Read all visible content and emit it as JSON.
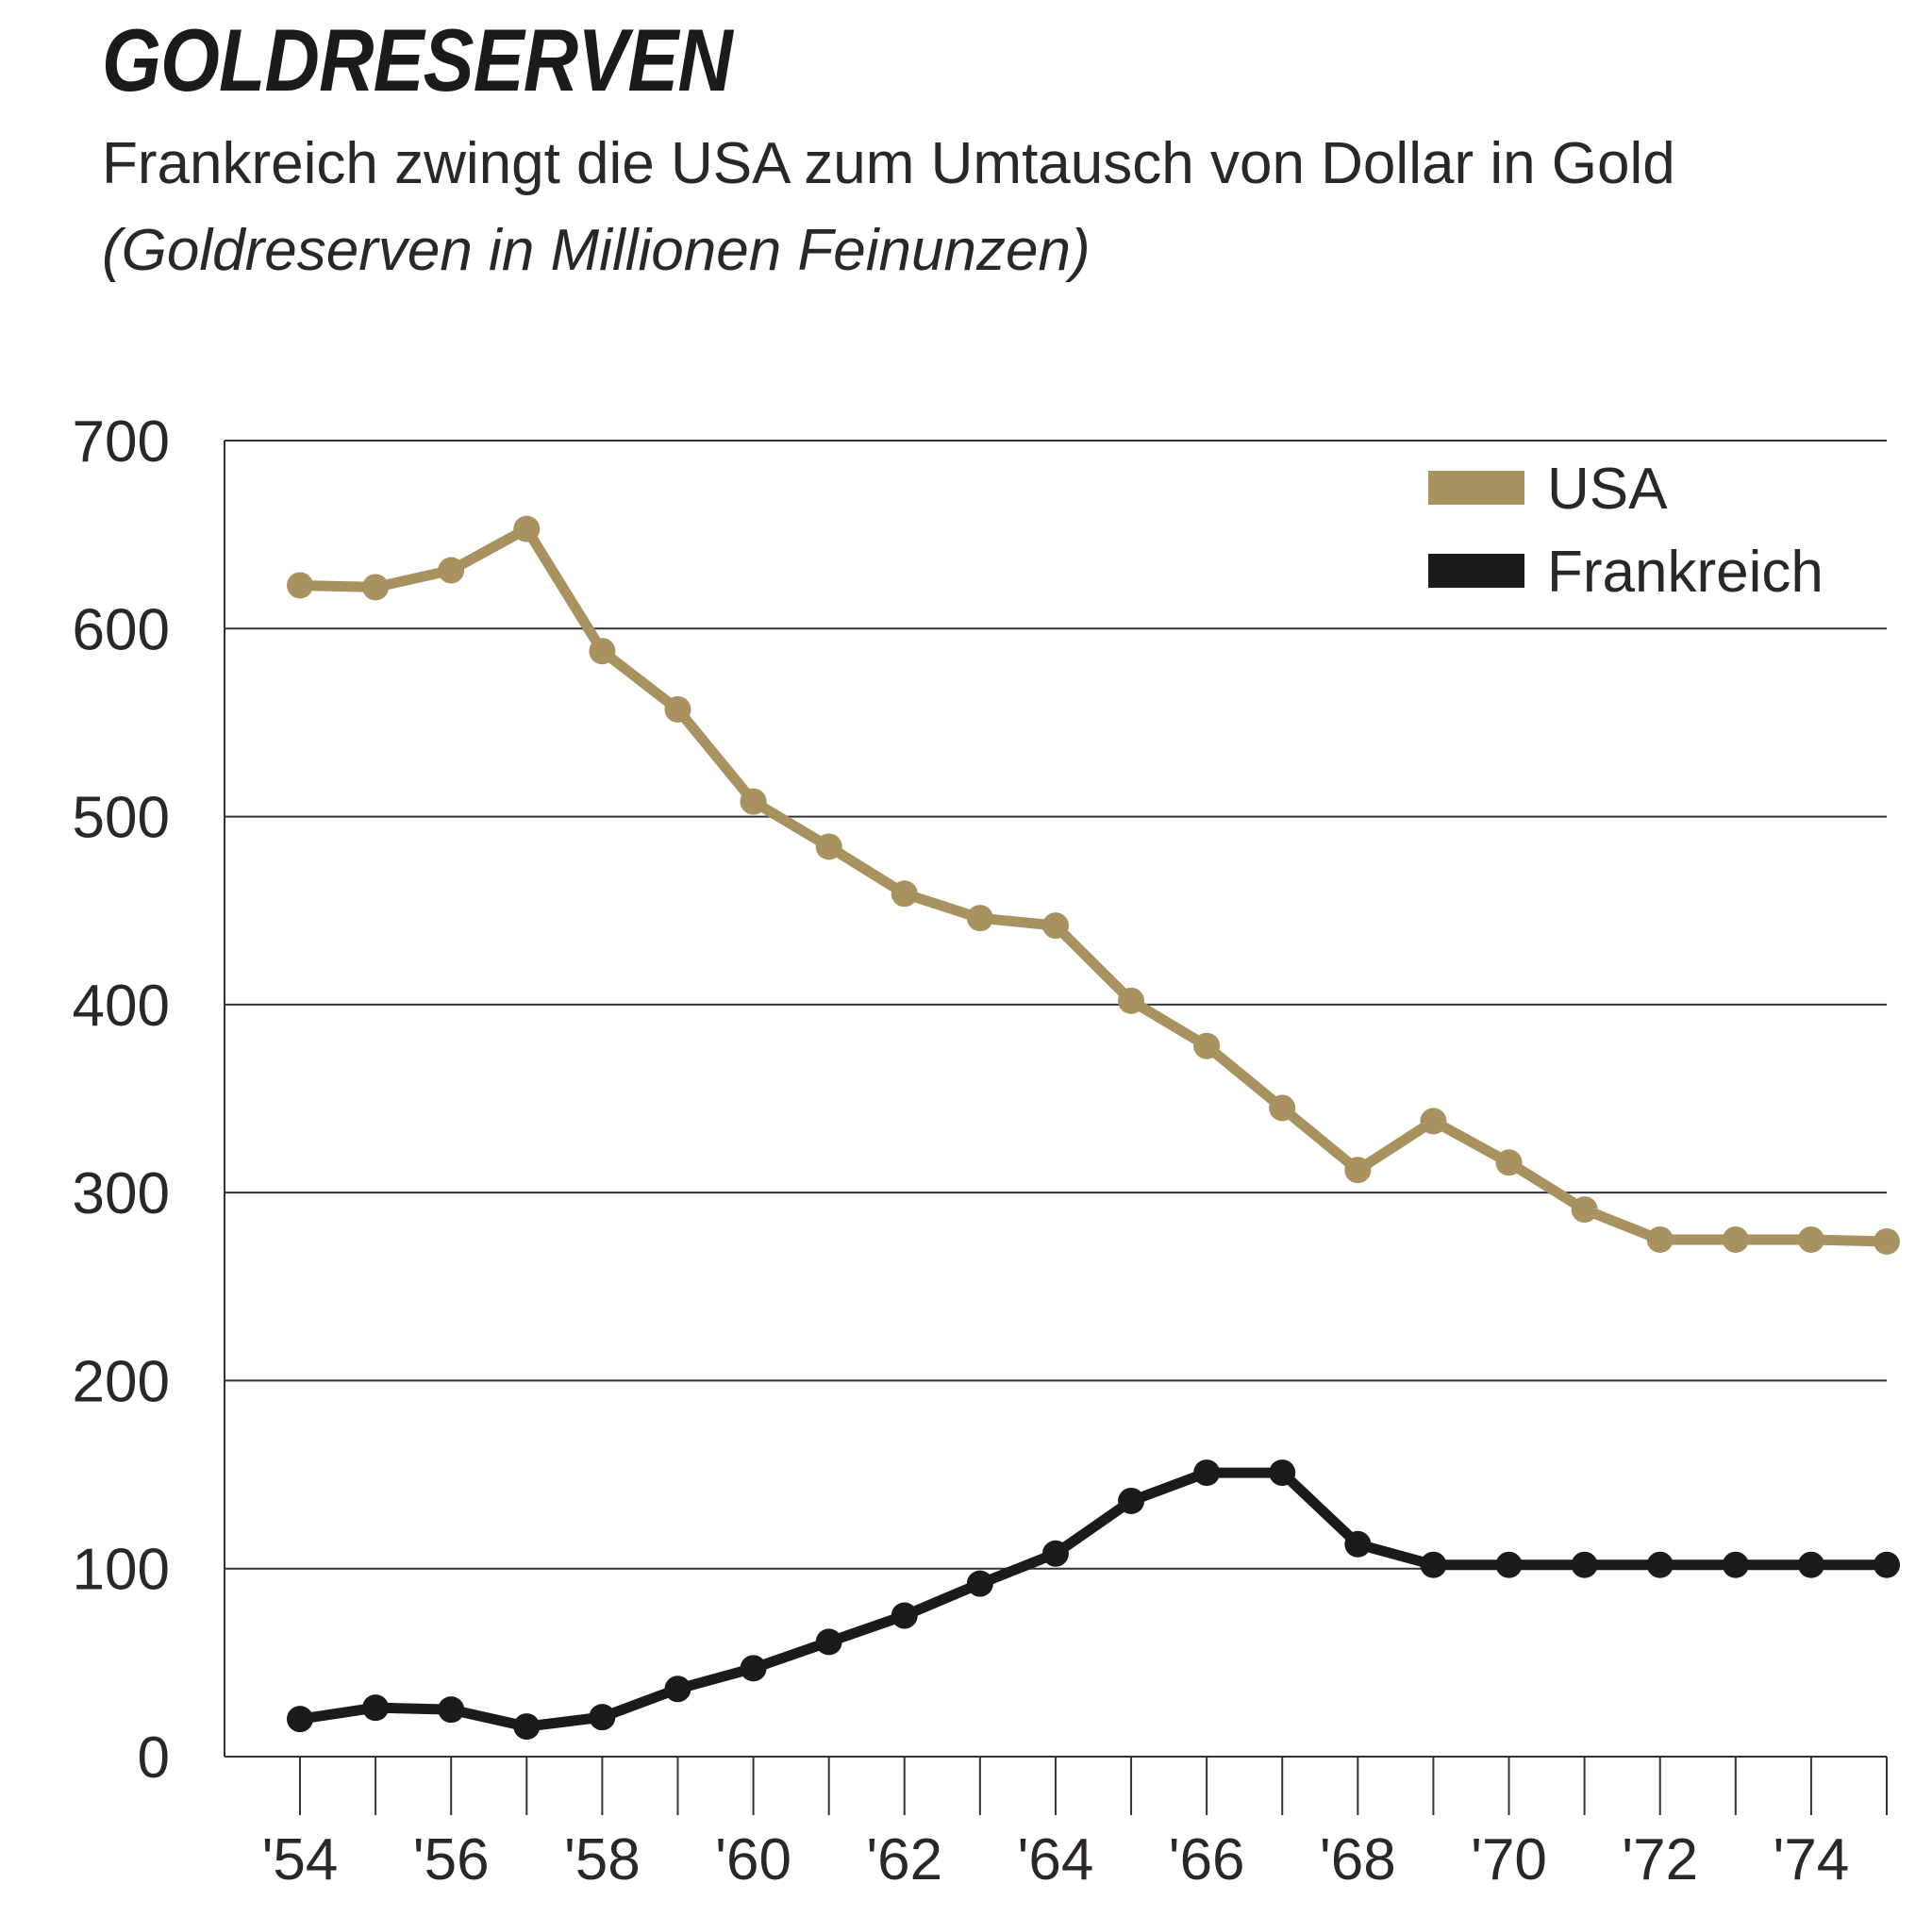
{
  "title": "GOLDRESERVEN",
  "subtitle": "Frankreich zwingt die USA zum Umtausch von Dollar in Gold",
  "subtitle_italic": "(Goldreserven in Millionen Feinunzen)",
  "colors": {
    "usa": "#a89360",
    "frankreich": "#1d1b1a",
    "grid": "#333333"
  },
  "chart_data": {
    "type": "line",
    "title": "GOLDRESERVEN",
    "subtitle": "Frankreich zwingt die USA zum Umtausch von Dollar in Gold (Goldreserven in Millionen Feinunzen)",
    "x": [
      1954,
      1955,
      1956,
      1957,
      1958,
      1959,
      1960,
      1961,
      1962,
      1963,
      1964,
      1965,
      1966,
      1967,
      1968,
      1969,
      1970,
      1971,
      1972,
      1973,
      1974,
      1975
    ],
    "x_tick_labels": [
      "'54",
      "'56",
      "'58",
      "'60",
      "'62",
      "'64",
      "'66",
      "'68",
      "'70",
      "'72",
      "'74"
    ],
    "x_tick_values": [
      1954,
      1956,
      1958,
      1960,
      1962,
      1964,
      1966,
      1968,
      1970,
      1972,
      1974
    ],
    "y_ticks": [
      0,
      100,
      200,
      300,
      400,
      500,
      600,
      700
    ],
    "ylim": [
      0,
      700
    ],
    "grid": true,
    "legend_position": "top-right",
    "series": [
      {
        "name": "USA",
        "color": "#a89360",
        "values": [
          623,
          622,
          631,
          653,
          588,
          557,
          508,
          484,
          459,
          446,
          442,
          402,
          378,
          345,
          312,
          338,
          316,
          291,
          275,
          275,
          275,
          274
        ]
      },
      {
        "name": "Frankreich",
        "color": "#1d1b1a",
        "values": [
          20,
          26,
          25,
          16,
          21,
          36,
          47,
          61,
          75,
          92,
          108,
          136,
          151,
          151,
          113,
          102,
          102,
          102,
          102,
          102,
          102,
          102
        ]
      }
    ]
  }
}
